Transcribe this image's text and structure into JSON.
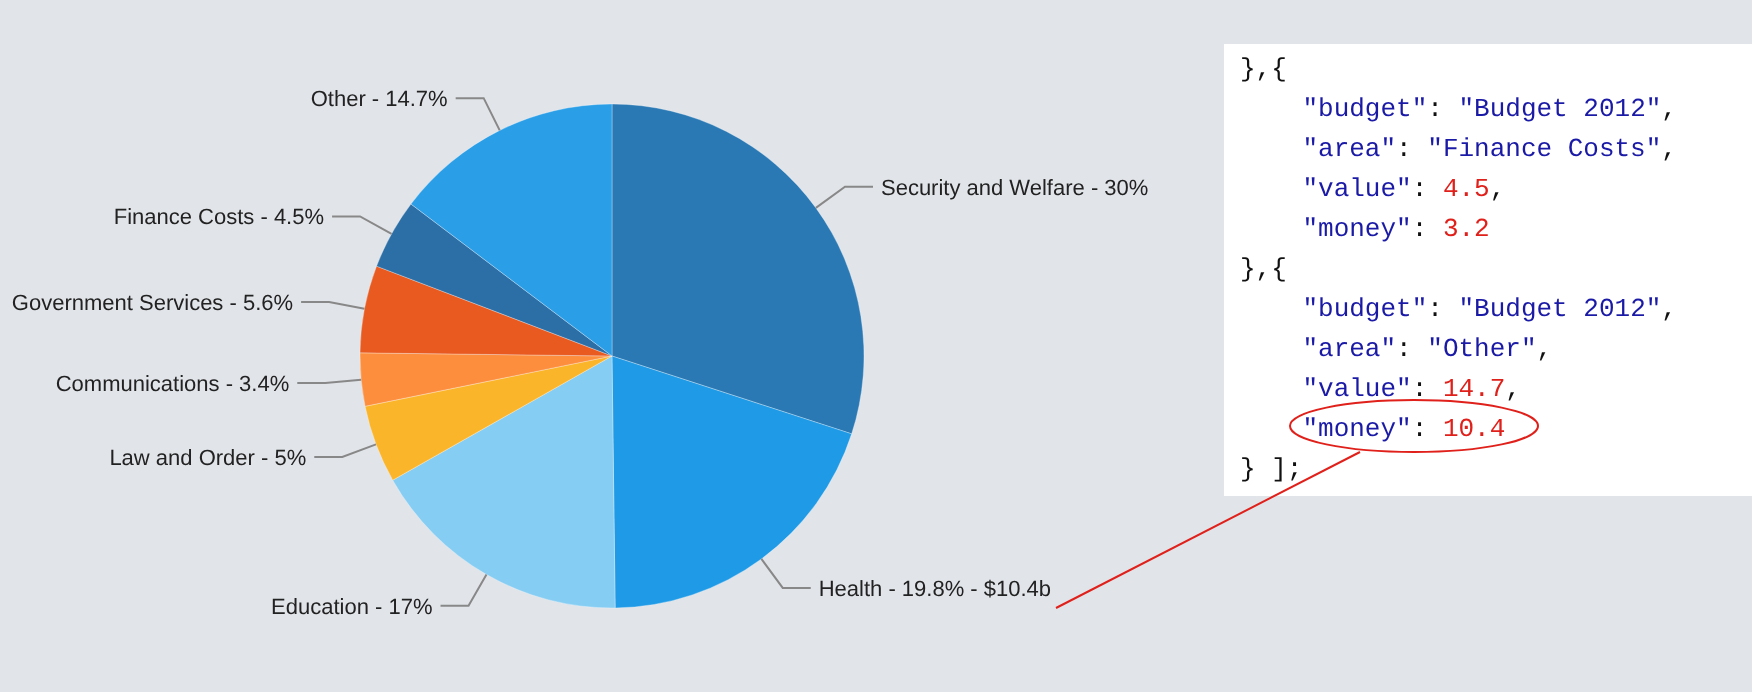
{
  "chart_data": {
    "type": "pie",
    "categories": [
      "Security and Welfare",
      "Health",
      "Education",
      "Law and Order",
      "Communications",
      "Government Services",
      "Finance Costs",
      "Other"
    ],
    "values": [
      30,
      19.8,
      17,
      5,
      3.4,
      5.6,
      4.5,
      14.7
    ],
    "colors": [
      "#2a79b4",
      "#1f9ae6",
      "#86cdf3",
      "#fbb52a",
      "#fd8e3e",
      "#e85a20",
      "#2c6ea6",
      "#2a9fe8"
    ],
    "value_labels": [
      "30%",
      "19.8% - $10.4b",
      "17%",
      "5%",
      "3.4%",
      "5.6%",
      "4.5%",
      "14.7%"
    ],
    "annotations": [
      "},{",
      "    \"budget\": \"Budget 2012\",",
      "    \"area\": \"Finance Costs\",",
      "    \"value\": 4.5,",
      "    \"money\": 3.2",
      "},{",
      "    \"budget\": \"Budget 2012\",",
      "    \"area\": \"Other\",",
      "    \"value\": 14.7,",
      "    \"money\": 10.4",
      "} ];"
    ]
  }
}
